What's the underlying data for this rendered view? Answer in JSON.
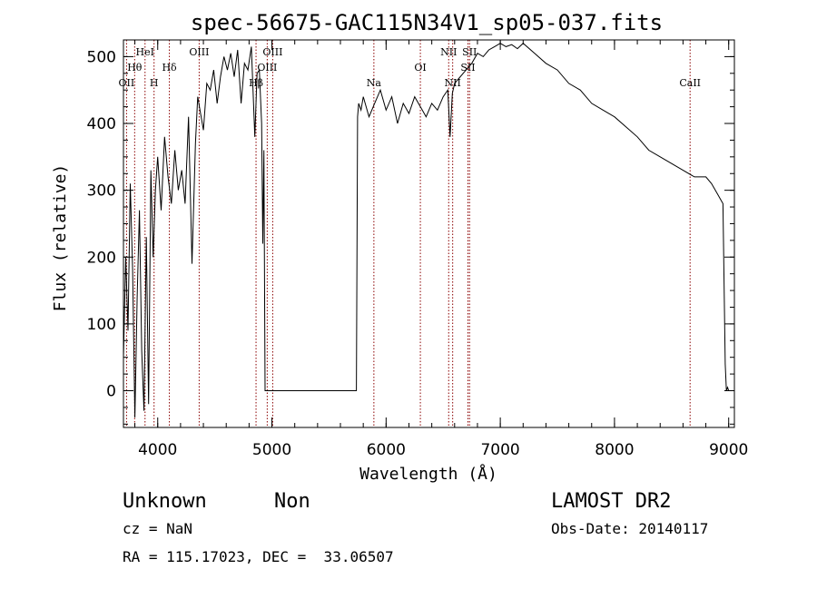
{
  "chart_data": {
    "type": "line",
    "title": "spec-56675-GAC115N34V1_sp05-037.fits",
    "xlabel": "Wavelength (Å)",
    "ylabel": "Flux (relative)",
    "xlim": [
      3700,
      9050
    ],
    "ylim": [
      -55,
      525
    ],
    "xticks": [
      4000,
      5000,
      6000,
      7000,
      8000,
      9000
    ],
    "yticks": [
      0,
      100,
      200,
      300,
      400,
      500
    ],
    "grid": false,
    "line_color": "#000000",
    "marker_color": "#8b0000",
    "series": [
      {
        "x": [
          3700,
          3720,
          3740,
          3760,
          3780,
          3800,
          3820,
          3840,
          3860,
          3880,
          3900,
          3920,
          3940,
          3960,
          3980,
          4000,
          4030,
          4060,
          4090,
          4120,
          4150,
          4180,
          4210,
          4240,
          4270,
          4300,
          4330,
          4350,
          4370,
          4400,
          4430,
          4460,
          4490,
          4520,
          4550,
          4580,
          4610,
          4640,
          4670,
          4700,
          4730,
          4760,
          4790,
          4820,
          4850,
          4870,
          4890,
          4910,
          4920,
          4930,
          4940,
          4950,
          5000,
          5200,
          5400,
          5600,
          5740,
          5750,
          5760,
          5780,
          5800,
          5850,
          5900,
          5950,
          6000,
          6050,
          6100,
          6150,
          6200,
          6250,
          6300,
          6350,
          6400,
          6450,
          6500,
          6540,
          6560,
          6580,
          6600,
          6650,
          6700,
          6750,
          6800,
          6850,
          6900,
          6950,
          7000,
          7050,
          7100,
          7150,
          7200,
          7300,
          7400,
          7500,
          7600,
          7700,
          7800,
          7900,
          8000,
          8100,
          8200,
          8300,
          8400,
          8500,
          8600,
          8700,
          8800,
          8850,
          8900,
          8950,
          8970,
          8980,
          8990,
          9000
        ],
        "y": [
          50,
          200,
          90,
          310,
          180,
          -40,
          140,
          270,
          60,
          -30,
          230,
          -20,
          330,
          200,
          300,
          350,
          270,
          380,
          320,
          280,
          360,
          300,
          330,
          280,
          410,
          190,
          370,
          440,
          420,
          390,
          460,
          450,
          480,
          430,
          470,
          500,
          480,
          505,
          470,
          510,
          430,
          490,
          480,
          515,
          380,
          475,
          480,
          400,
          220,
          360,
          0,
          0,
          0,
          0,
          0,
          0,
          0,
          410,
          430,
          420,
          440,
          410,
          430,
          450,
          420,
          440,
          400,
          430,
          415,
          440,
          425,
          410,
          430,
          420,
          440,
          450,
          380,
          445,
          460,
          470,
          480,
          490,
          505,
          500,
          510,
          515,
          520,
          515,
          518,
          512,
          520,
          505,
          490,
          480,
          460,
          450,
          430,
          420,
          410,
          395,
          380,
          360,
          350,
          340,
          330,
          320,
          320,
          310,
          295,
          280,
          40,
          0,
          5,
          0
        ]
      }
    ],
    "lines": [
      {
        "label": "OII",
        "x": 3727
      },
      {
        "label": "Hθ",
        "x": 3798
      },
      {
        "label": "HeI",
        "x": 3889
      },
      {
        "label": "H",
        "x": 3968
      },
      {
        "label": "Hδ",
        "x": 4102
      },
      {
        "label": "OIII",
        "x": 4363
      },
      {
        "label": "Hβ",
        "x": 4861
      },
      {
        "label": "OIII",
        "x": 4959
      },
      {
        "label": "OIII",
        "x": 5007
      },
      {
        "label": "Na",
        "x": 5893
      },
      {
        "label": "OI",
        "x": 6300
      },
      {
        "label": "NII",
        "x": 6548
      },
      {
        "label": "NII",
        "x": 6583
      },
      {
        "label": "SII",
        "x": 6717
      },
      {
        "label": "SII",
        "x": 6731
      },
      {
        "label": "CaII",
        "x": 8662
      }
    ]
  },
  "info": {
    "object_class": "Unknown",
    "subclass": "Non",
    "survey": "LAMOST DR2",
    "cz": "cz = NaN",
    "obs_date": "Obs-Date: 20140117",
    "coords": "RA = 115.17023, DEC =  33.06507"
  }
}
